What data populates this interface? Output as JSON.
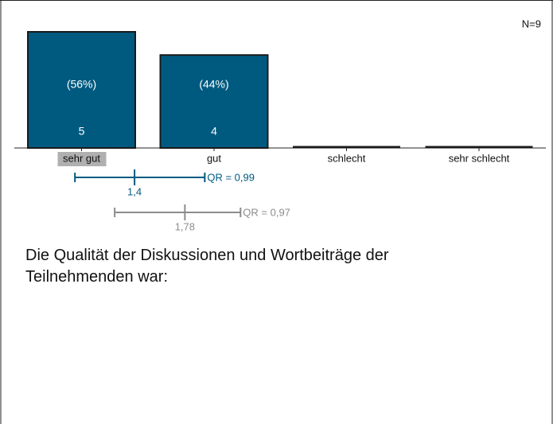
{
  "chart_data": {
    "type": "bar",
    "note": "N=9",
    "question": "Die Qualität der Diskussionen und Wortbeiträge der Teilnehmenden war:",
    "categories": [
      "sehr gut",
      "gut",
      "schlecht",
      "sehr schlecht"
    ],
    "values": [
      5,
      4,
      0,
      0
    ],
    "percents": [
      56,
      44,
      0,
      0
    ],
    "percent_labels": [
      "(56%)",
      "(44%)",
      null,
      null
    ],
    "color": "#005a80",
    "ylim": [
      0,
      5
    ],
    "highlight_category": 0,
    "summary": [
      {
        "mean": 1.4,
        "mean_label": "1,4",
        "low": 0.95,
        "high": 1.93,
        "qr_label": "QR = 0,99",
        "color": "#005a80"
      },
      {
        "mean": 1.78,
        "mean_label": "1,78",
        "low": 1.25,
        "high": 2.2,
        "qr_label": "QR = 0,97",
        "color": "#8c8c8c"
      }
    ]
  }
}
